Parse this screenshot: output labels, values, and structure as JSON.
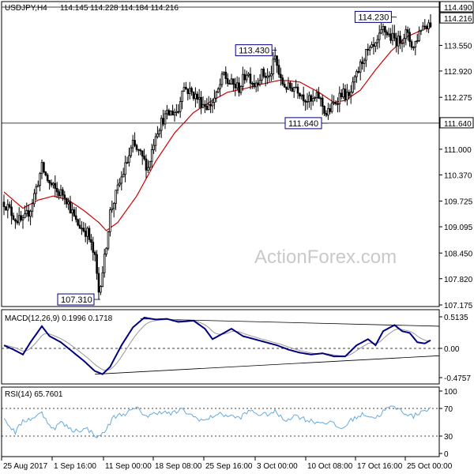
{
  "header": {
    "symbol": "USDJPY,H4",
    "ohlc": "114.145 114.228 114.184 114.216"
  },
  "watermark": "ActionForex.com",
  "colors": {
    "candles": "#000000",
    "ma": "#cc0000",
    "macd_line": "#000080",
    "macd_signal": "#999999",
    "rsi": "#66aadd",
    "grid": "#000000",
    "marker_box": "#000080"
  },
  "x_labels": [
    "25 Aug 2017",
    "1 Sep 16:00",
    "11 Sep 00:00",
    "18 Sep 08:00",
    "25 Sep 16:00",
    "3 Oct 00:00",
    "10 Oct 08:00",
    "17 Oct 16:00",
    "25 Oct 00:00"
  ],
  "price_panel": {
    "y_ticks": [
      "114.490",
      "113.550",
      "112.920",
      "112.275",
      "111.640",
      "111.000",
      "110.370",
      "109.725",
      "109.095",
      "108.450",
      "107.820",
      "107.175"
    ],
    "current_price": "114.216",
    "levels": [
      {
        "value": 111.64,
        "label": "111.640"
      },
      {
        "value": 114.49,
        "label": "114.490"
      }
    ],
    "annotations": [
      {
        "label": "113.430",
        "value": 113.43,
        "idx": 143
      },
      {
        "label": "111.640",
        "value": 111.64,
        "idx": 170
      },
      {
        "label": "114.230",
        "value": 114.23,
        "idx": 206
      },
      {
        "label": "107.310",
        "value": 107.31,
        "idx": 50
      }
    ]
  },
  "macd_panel": {
    "title": "MACD(12,26,9) 0.1996 0.1718",
    "y_ticks": [
      "0.5135",
      "0.00",
      "-0.4757"
    ]
  },
  "rsi_panel": {
    "title": "RSI(14) 65.7601",
    "y_ticks": [
      "100",
      "70",
      "30",
      "0"
    ]
  },
  "chart_data": {
    "type": "line",
    "x_tick_labels": [
      "25 Aug 2017",
      "1 Sep 16:00",
      "11 Sep 00:00",
      "18 Sep 08:00",
      "25 Sep 16:00",
      "3 Oct 00:00",
      "10 Oct 08:00",
      "17 Oct 16:00",
      "25 Oct 00:00"
    ],
    "price_anchors": [
      [
        0,
        109.7
      ],
      [
        6,
        109.3
      ],
      [
        10,
        109.2
      ],
      [
        14,
        109.55
      ],
      [
        20,
        110.55
      ],
      [
        24,
        110.15
      ],
      [
        28,
        109.95
      ],
      [
        32,
        109.9
      ],
      [
        38,
        109.2
      ],
      [
        44,
        108.95
      ],
      [
        48,
        108.3
      ],
      [
        50,
        107.5
      ],
      [
        53,
        108.3
      ],
      [
        56,
        109.45
      ],
      [
        62,
        110.3
      ],
      [
        68,
        111.1
      ],
      [
        72,
        110.85
      ],
      [
        76,
        110.55
      ],
      [
        80,
        111.4
      ],
      [
        84,
        111.75
      ],
      [
        88,
        111.9
      ],
      [
        92,
        111.95
      ],
      [
        94,
        112.55
      ],
      [
        100,
        112.35
      ],
      [
        104,
        112.15
      ],
      [
        108,
        112.05
      ],
      [
        112,
        112.3
      ],
      [
        116,
        112.85
      ],
      [
        118,
        112.65
      ],
      [
        124,
        112.5
      ],
      [
        128,
        112.9
      ],
      [
        132,
        112.6
      ],
      [
        136,
        112.85
      ],
      [
        140,
        112.75
      ],
      [
        143,
        113.25
      ],
      [
        146,
        112.65
      ],
      [
        150,
        112.5
      ],
      [
        154,
        112.55
      ],
      [
        158,
        112.3
      ],
      [
        162,
        112.15
      ],
      [
        166,
        112.3
      ],
      [
        170,
        111.85
      ],
      [
        174,
        112.1
      ],
      [
        178,
        112.4
      ],
      [
        182,
        112.25
      ],
      [
        186,
        112.8
      ],
      [
        190,
        113.3
      ],
      [
        196,
        113.5
      ],
      [
        200,
        113.95
      ],
      [
        204,
        113.75
      ],
      [
        208,
        113.65
      ],
      [
        212,
        113.85
      ],
      [
        216,
        113.5
      ],
      [
        220,
        114.0
      ],
      [
        224,
        114.1
      ]
    ],
    "ma_anchors": [
      [
        0,
        109.95
      ],
      [
        10,
        109.55
      ],
      [
        18,
        109.75
      ],
      [
        26,
        109.85
      ],
      [
        34,
        109.75
      ],
      [
        42,
        109.5
      ],
      [
        50,
        109.2
      ],
      [
        54,
        109.0
      ],
      [
        60,
        109.2
      ],
      [
        70,
        109.85
      ],
      [
        80,
        110.7
      ],
      [
        90,
        111.4
      ],
      [
        100,
        111.9
      ],
      [
        110,
        112.2
      ],
      [
        118,
        112.4
      ],
      [
        128,
        112.5
      ],
      [
        136,
        112.6
      ],
      [
        146,
        112.7
      ],
      [
        156,
        112.65
      ],
      [
        166,
        112.4
      ],
      [
        174,
        112.15
      ],
      [
        180,
        112.2
      ],
      [
        188,
        112.45
      ],
      [
        196,
        112.95
      ],
      [
        204,
        113.4
      ],
      [
        212,
        113.75
      ],
      [
        224,
        114.0
      ]
    ],
    "macd_anchors": [
      [
        0,
        0.05
      ],
      [
        5,
        -0.02
      ],
      [
        10,
        -0.1
      ],
      [
        14,
        0.1
      ],
      [
        20,
        0.36
      ],
      [
        24,
        0.2
      ],
      [
        30,
        0.1
      ],
      [
        36,
        -0.05
      ],
      [
        42,
        -0.2
      ],
      [
        48,
        -0.37
      ],
      [
        52,
        -0.42
      ],
      [
        56,
        -0.3
      ],
      [
        62,
        0.05
      ],
      [
        68,
        0.34
      ],
      [
        74,
        0.5
      ],
      [
        80,
        0.47
      ],
      [
        86,
        0.48
      ],
      [
        92,
        0.43
      ],
      [
        96,
        0.44
      ],
      [
        100,
        0.45
      ],
      [
        106,
        0.32
      ],
      [
        110,
        0.15
      ],
      [
        116,
        0.25
      ],
      [
        120,
        0.32
      ],
      [
        126,
        0.2
      ],
      [
        132,
        0.15
      ],
      [
        138,
        0.1
      ],
      [
        144,
        0.05
      ],
      [
        150,
        -0.02
      ],
      [
        156,
        -0.07
      ],
      [
        162,
        -0.1
      ],
      [
        168,
        -0.08
      ],
      [
        174,
        -0.13
      ],
      [
        180,
        -0.13
      ],
      [
        186,
        0.05
      ],
      [
        192,
        0.15
      ],
      [
        196,
        0.05
      ],
      [
        200,
        0.28
      ],
      [
        206,
        0.38
      ],
      [
        210,
        0.28
      ],
      [
        214,
        0.25
      ],
      [
        218,
        0.1
      ],
      [
        222,
        0.08
      ],
      [
        226,
        0.15
      ]
    ],
    "rsi_anchors": [
      [
        0,
        55
      ],
      [
        6,
        35
      ],
      [
        10,
        52
      ],
      [
        14,
        55
      ],
      [
        20,
        63
      ],
      [
        26,
        40
      ],
      [
        30,
        50
      ],
      [
        36,
        38
      ],
      [
        44,
        40
      ],
      [
        50,
        28
      ],
      [
        54,
        40
      ],
      [
        58,
        58
      ],
      [
        64,
        63
      ],
      [
        70,
        70
      ],
      [
        76,
        58
      ],
      [
        82,
        66
      ],
      [
        88,
        62
      ],
      [
        94,
        68
      ],
      [
        100,
        58
      ],
      [
        106,
        52
      ],
      [
        112,
        62
      ],
      [
        118,
        60
      ],
      [
        124,
        56
      ],
      [
        130,
        67
      ],
      [
        136,
        60
      ],
      [
        143,
        65
      ],
      [
        148,
        53
      ],
      [
        154,
        60
      ],
      [
        160,
        53
      ],
      [
        166,
        50
      ],
      [
        172,
        50
      ],
      [
        178,
        40
      ],
      [
        184,
        55
      ],
      [
        190,
        62
      ],
      [
        196,
        56
      ],
      [
        202,
        70
      ],
      [
        206,
        72
      ],
      [
        212,
        63
      ],
      [
        216,
        58
      ],
      [
        220,
        66
      ],
      [
        224,
        70
      ]
    ],
    "bars": 226
  }
}
